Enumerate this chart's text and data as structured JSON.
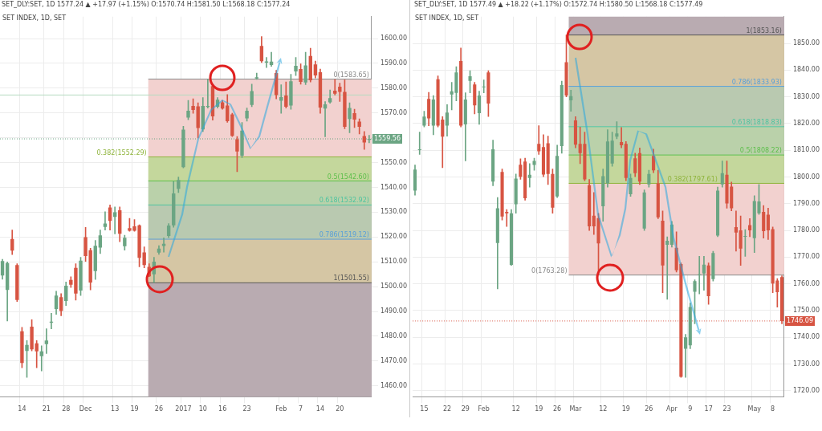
{
  "chart_data": [
    {
      "type": "candlestick",
      "title": "SET INDEX, 1D, SET",
      "subtitle": "SET_DLY:SET, 1D 1577.24 ▲ +17.97 (+1.15%) O:1570.74 H:1581.50 L:1568.18 C:1577.24",
      "categories": [
        null,
        null,
        null,
        null,
        "14",
        null,
        null,
        null,
        null,
        "21",
        null,
        null,
        null,
        "28",
        null,
        null,
        null,
        "Dec",
        null,
        null,
        null,
        null,
        null,
        "13",
        null,
        null,
        null,
        "19",
        null,
        null,
        null,
        null,
        "26",
        null,
        null,
        null,
        null,
        "2017",
        null,
        null,
        null,
        "10",
        null,
        null,
        null,
        "16",
        null,
        null,
        null,
        null,
        "23",
        null,
        null,
        null,
        null,
        null,
        null,
        "Feb",
        null,
        null,
        null,
        "7",
        null,
        null,
        null,
        "14",
        null,
        null,
        null,
        "20",
        null,
        null,
        null,
        null,
        null,
        null
      ],
      "ohlc": [
        [
          1504.5,
          1511,
          1503,
          1510.3
        ],
        [
          1498.7,
          1510,
          1486.2,
          1509.5
        ],
        [
          1519.2,
          1522.8,
          1512.9,
          1514.5
        ],
        [
          1508.7,
          1509.2,
          1494,
          1494.6
        ],
        [
          1482,
          1483.6,
          1467.3,
          1469.2
        ],
        [
          1474.1,
          1478.3,
          1463.4,
          1476.5
        ],
        [
          1483.9,
          1486.7,
          1474.1,
          1474.7
        ],
        [
          1477.2,
          1478.3,
          1467.3,
          1473.9
        ],
        [
          1472,
          1476.2,
          1466,
          1473.9
        ],
        [
          1476.8,
          1483,
          1473.1,
          1478.3
        ],
        [
          1485.5,
          1489.3,
          1483,
          1485.9
        ],
        [
          1491,
          1498.2,
          1488.8,
          1496.4
        ],
        [
          1495.8,
          1497.2,
          1488.3,
          1490.2
        ],
        [
          1494.2,
          1501.9,
          1492.4,
          1500.4
        ],
        [
          1502.7,
          1504,
          1499.7,
          1500.8
        ],
        [
          1507.6,
          1509.2,
          1494.6,
          1497.2
        ],
        [
          1498.4,
          1511.8,
          1496.4,
          1510.5
        ],
        [
          1519.9,
          1523.9,
          1510.2,
          1512.3
        ],
        [
          1514.7,
          1515.5,
          1498.7,
          1501.7
        ],
        [
          1506.3,
          1518.6,
          1502.9,
          1516.5
        ],
        [
          1515.7,
          1522.8,
          1513.3,
          1520.7
        ],
        [
          1524.1,
          1530.2,
          1522.8,
          1525.4
        ],
        [
          1531.9,
          1532.9,
          1522.8,
          1526.5
        ],
        [
          1528.1,
          1532.1,
          1521.3,
          1530
        ],
        [
          1530.8,
          1532.1,
          1518.1,
          1521.3
        ],
        [
          1516.3,
          1520.7,
          1514.7,
          1519.7
        ],
        [
          1523.6,
          1527.5,
          1522.3,
          1522.5
        ],
        [
          1524.3,
          1527,
          1522.3,
          1522.5
        ],
        [
          1524.7,
          1524.9,
          1508,
          1511.6
        ],
        [
          1513.8,
          1516,
          1507.6,
          1508.7
        ],
        [
          1508,
          1509.2,
          1504,
          1504.2
        ],
        [
          1505,
          1511.8,
          1501.6,
          1510.1
        ],
        [
          1513.7,
          1516.5,
          1513,
          1515.3
        ],
        [
          1516.4,
          1519.7,
          1513.9,
          1517.3
        ],
        [
          1520.4,
          1525.4,
          1519.7,
          1524.6
        ],
        [
          1524.7,
          1542.4,
          1523.9,
          1537.6
        ],
        [
          1539.4,
          1544.2,
          1537.9,
          1543
        ],
        [
          1548.2,
          1564.6,
          1547.9,
          1563.3
        ],
        [
          1568.1,
          1575.1,
          1567.3,
          1570.9
        ],
        [
          1572.8,
          1575.7,
          1569.9,
          1571.2
        ],
        [
          1572.7,
          1574.1,
          1559.9,
          1563.9
        ],
        [
          1563.4,
          1576.2,
          1562.5,
          1572.8
        ],
        [
          1572.4,
          1583.6,
          1572,
          1572.8
        ],
        [
          1580.8,
          1581.4,
          1567.1,
          1568.6
        ],
        [
          1572.5,
          1576.2,
          1572,
          1575.3
        ],
        [
          1574.3,
          1575.1,
          1571.5,
          1571.8
        ],
        [
          1573,
          1577.4,
          1566.2,
          1566.7
        ],
        [
          1569.4,
          1569.9,
          1560.5,
          1560.8
        ],
        [
          1559.4,
          1560.5,
          1546.3,
          1554.5
        ],
        [
          1552.8,
          1566.2,
          1552,
          1562.9
        ],
        [
          1567.8,
          1572,
          1566.7,
          1570.9
        ],
        [
          1573.2,
          1581.6,
          1572.5,
          1578.8
        ],
        [
          1583.9,
          1586.1,
          1583.5,
          1584.4
        ],
        [
          1597,
          1600.8,
          1590.3,
          1590.9
        ],
        [
          1590.3,
          1592.4,
          1588.3,
          1590.8
        ],
        [
          1589.3,
          1594.5,
          1588.8,
          1590.7
        ],
        [
          1586.1,
          1587.2,
          1575.7,
          1577.2
        ],
        [
          1574.9,
          1581.4,
          1569.9,
          1576.4
        ],
        [
          1577,
          1582.5,
          1572,
          1572.5
        ],
        [
          1573,
          1585.6,
          1571.5,
          1582.8
        ],
        [
          1586.7,
          1592.4,
          1585.1,
          1589
        ],
        [
          1587.7,
          1589.8,
          1581.6,
          1582.5
        ],
        [
          1582.3,
          1594.5,
          1581.4,
          1589.2
        ],
        [
          1593,
          1596.1,
          1582.5,
          1583.2
        ],
        [
          1589.6,
          1590.9,
          1584.1,
          1585.1
        ],
        [
          1586.4,
          1587.7,
          1569.9,
          1572.2
        ],
        [
          1571.8,
          1574.6,
          1560.4,
          1573.5
        ],
        [
          1574.3,
          1579.3,
          1573.9,
          1576
        ],
        [
          1579,
          1583.5,
          1577.2,
          1577.8
        ],
        [
          1580.6,
          1582,
          1574.6,
          1578.5
        ],
        [
          1578.5,
          1583.3,
          1563.6,
          1564.4
        ],
        [
          1567.6,
          1574.1,
          1562,
          1572
        ],
        [
          1569.9,
          1571.5,
          1564.1,
          1567.3
        ],
        [
          1566.5,
          1567.6,
          1561.5,
          1564.4
        ],
        [
          1560.7,
          1562.5,
          1555.3,
          1558.1
        ],
        [
          1559.2,
          1561,
          1558,
          1559.56
        ]
      ],
      "colors": [
        "#6ba583",
        "#6ba583",
        "#d75442",
        "#d75442",
        "#d75442",
        "#6ba583",
        "#d75442",
        "#d75442",
        "#6ba583",
        "#6ba583",
        "#6ba583",
        "#6ba583",
        "#d75442",
        "#6ba583",
        "#d75442",
        "#d75442",
        "#6ba583",
        "#d75442",
        "#d75442",
        "#6ba583",
        "#6ba583",
        "#6ba583",
        "#d75442",
        "#6ba583",
        "#d75442",
        "#6ba583",
        "#d75442",
        "#d75442",
        "#d75442",
        "#d75442",
        "#d75442",
        "#6ba583",
        "#6ba583",
        "#6ba583",
        "#6ba583",
        "#6ba583",
        "#6ba583",
        "#6ba583",
        "#6ba583",
        "#d75442",
        "#d75442",
        "#6ba583",
        "#6ba583",
        "#d75442",
        "#6ba583",
        "#d75442",
        "#d75442",
        "#d75442",
        "#d75442",
        "#6ba583",
        "#6ba583",
        "#6ba583",
        "#6ba583",
        "#d75442",
        "#6ba583",
        "#6ba583",
        "#d75442",
        "#6ba583",
        "#d75442",
        "#6ba583",
        "#6ba583",
        "#d75442",
        "#6ba583",
        "#d75442",
        "#d75442",
        "#d75442",
        "#6ba583",
        "#6ba583",
        "#d75442",
        "#d75442",
        "#d75442",
        "#6ba583",
        "#d75442",
        "#d75442",
        "#d75442",
        "#6ba583"
      ],
      "ylim": [
        1455.6,
        1608.8
      ],
      "yticks": [
        {
          "value": 1460,
          "label": "1460.00"
        },
        {
          "value": 1470,
          "label": "1470.00"
        },
        {
          "value": 1480,
          "label": "1480.00"
        },
        {
          "value": 1490,
          "label": "1490.00"
        },
        {
          "value": 1500,
          "label": "1500.00"
        },
        {
          "value": 1510,
          "label": "1510.00"
        },
        {
          "value": 1520,
          "label": "1520.00"
        },
        {
          "value": 1530,
          "label": "1530.00"
        },
        {
          "value": 1540,
          "label": "1540.00"
        },
        {
          "value": 1550,
          "label": "1550.00"
        },
        {
          "value": 1560,
          "label": null
        },
        {
          "value": 1570,
          "label": "1570.00"
        },
        {
          "value": 1580,
          "label": "1580.00"
        },
        {
          "value": 1590,
          "label": "1590.00"
        },
        {
          "value": 1600,
          "label": "1600.00"
        }
      ],
      "grid": true,
      "bands": [
        {
          "axis": "y",
          "from": 1455.6,
          "to": 1501.55,
          "color": "#b9abb1"
        },
        {
          "axis": "y",
          "from": 1501.55,
          "to": 1519.12,
          "color": "#d5c6a4"
        },
        {
          "axis": "y",
          "from": 1519.12,
          "to": 1532.92,
          "color": "#b9c9b0"
        },
        {
          "axis": "y",
          "from": 1532.92,
          "to": 1542.6,
          "color": "#bad1aa"
        },
        {
          "axis": "y",
          "from": 1542.6,
          "to": 1552.29,
          "color": "#c4d79c"
        },
        {
          "axis": "y",
          "from": 1552.29,
          "to": 1583.65,
          "color": "#f2d1cf"
        }
      ],
      "ref_lines": [
        {
          "axis": "y",
          "value": 1583.65,
          "label": "0(1583.65)",
          "color": "#8a8a8a"
        },
        {
          "axis": "y",
          "value": 1552.29,
          "label": "0.382(1552.29)",
          "color": "#8fb43c"
        },
        {
          "axis": "y",
          "value": 1542.6,
          "label": "0.5(1542.60)",
          "color": "#5cbf4a"
        },
        {
          "axis": "y",
          "value": 1532.92,
          "label": "0.618(1532.92)",
          "color": "#4fc4a0"
        },
        {
          "axis": "y",
          "value": 1519.12,
          "label": "0.786(1519.12)",
          "color": "#5aa0d8"
        },
        {
          "axis": "y",
          "value": 1501.55,
          "label": "1(1501.55)",
          "color": "#555555"
        },
        {
          "axis": "y",
          "value": 1577.24,
          "color": "#b5dcc0"
        },
        {
          "axis": "y",
          "value": 1559.56,
          "label": "1559.56",
          "color": "#6ba583",
          "line_style": "dotted"
        }
      ]
    },
    {
      "type": "candlestick",
      "title": "SET INDEX, 1D, SET",
      "subtitle": "SET_DLY:SET, 1D 1577.49 ▲ +18.22 (+1.17%) O:1572.74 H:1580.50 L:1568.18 C:1577.49",
      "categories": [
        null,
        null,
        "15",
        null,
        null,
        null,
        null,
        "22",
        null,
        null,
        null,
        "29",
        null,
        null,
        null,
        "Feb",
        null,
        null,
        null,
        null,
        null,
        null,
        "12",
        null,
        null,
        null,
        null,
        "19",
        null,
        null,
        null,
        "26",
        null,
        null,
        null,
        "Mar",
        null,
        null,
        null,
        null,
        null,
        "12",
        null,
        null,
        null,
        null,
        "19",
        null,
        null,
        null,
        null,
        "26",
        null,
        null,
        null,
        null,
        "Apr",
        null,
        null,
        null,
        "9",
        null,
        null,
        null,
        "17",
        null,
        null,
        null,
        "23",
        null,
        null,
        null,
        null,
        null,
        "May",
        null,
        null,
        null,
        "8",
        null,
        null
      ],
      "ohlc": [
        [
          1794.9,
          1804.5,
          1793.2,
          1802.8
        ],
        [
          1810.1,
          1816.8,
          1808.4,
          1810.3
        ],
        [
          1819.2,
          1824.6,
          1818.7,
          1822.6
        ],
        [
          1829.2,
          1831.7,
          1819.2,
          1821.9
        ],
        [
          1819.2,
          1830.5,
          1815.8,
          1829
        ],
        [
          1836.6,
          1837.8,
          1818.7,
          1819.2
        ],
        [
          1821.5,
          1822.6,
          1803.5,
          1815.1
        ],
        [
          1819.2,
          1827.1,
          1815.3,
          1824.1
        ],
        [
          1830.9,
          1835.4,
          1825.1,
          1832.1
        ],
        [
          1831.5,
          1841.3,
          1828.5,
          1839.1
        ],
        [
          1843.4,
          1848.3,
          1818.7,
          1819.2
        ],
        [
          1819.7,
          1831.5,
          1806,
          1829
        ],
        [
          1836,
          1839.8,
          1831.5,
          1837.7
        ],
        [
          1834.6,
          1835.4,
          1823.6,
          1826.8
        ],
        [
          1823.9,
          1832.1,
          1819.7,
          1830.5
        ],
        [
          1833.6,
          1836.3,
          1831.5,
          1833.8
        ],
        [
          1839.1,
          1839.8,
          1822.6,
          1827.5
        ],
        [
          1798.3,
          1813.8,
          1796.7,
          1810.4
        ],
        [
          1775.3,
          1792.3,
          1758.1,
          1788.3
        ],
        [
          1801.9,
          1803,
          1783.9,
          1785.2
        ],
        [
          1786.9,
          1787.8,
          1781.5,
          1786.4
        ],
        [
          1767.1,
          1787.8,
          1766.9,
          1786.4
        ],
        [
          1789.8,
          1801.1,
          1786.4,
          1799.4
        ],
        [
          1804.6,
          1806.8,
          1799.1,
          1800.1
        ],
        [
          1805.8,
          1807,
          1791.3,
          1792
        ],
        [
          1799.6,
          1805,
          1796.2,
          1800.8
        ],
        [
          1804.5,
          1807,
          1802.5,
          1806
        ],
        [
          1812.4,
          1819.2,
          1808.4,
          1809.6
        ],
        [
          1811.2,
          1815.8,
          1800.1,
          1800.9
        ],
        [
          1812.6,
          1815.3,
          1797.2,
          1801.1
        ],
        [
          1801.1,
          1803,
          1786.4,
          1788.5
        ],
        [
          1792.7,
          1811.9,
          1792.3,
          1807.9
        ],
        [
          1811.6,
          1835.9,
          1808.9,
          1834.4
        ],
        [
          1843,
          1853.16,
          1830,
          1830.5
        ],
        [
          1828.7,
          1832.5,
          1824.6,
          1830.3
        ],
        [
          1821.2,
          1822.6,
          1810.9,
          1812.1
        ],
        [
          1812.4,
          1818.7,
          1805,
          1808.9
        ],
        [
          1812.4,
          1816.8,
          1798.6,
          1799.1
        ],
        [
          1796.9,
          1799.1,
          1780,
          1781.5
        ],
        [
          1785.5,
          1794.2,
          1778.5,
          1781.5
        ],
        [
          1784.6,
          1786.4,
          1763.28,
          1775.1
        ],
        [
          1789,
          1803,
          1783.4,
          1800.3
        ],
        [
          1797.6,
          1817.7,
          1796.2,
          1813.3
        ],
        [
          1805,
          1816.8,
          1804,
          1813.6
        ],
        [
          1815.1,
          1820.7,
          1814.3,
          1816.3
        ],
        [
          1813.1,
          1818.5,
          1810.9,
          1811.9
        ],
        [
          1812.4,
          1813.3,
          1798.6,
          1799.6
        ],
        [
          1793.5,
          1801.1,
          1792.7,
          1799.6
        ],
        [
          1807,
          1808.9,
          1800.1,
          1801.4
        ],
        [
          1808.9,
          1810.9,
          1797.2,
          1798.3
        ],
        [
          1780.7,
          1795.2,
          1780,
          1794.2
        ],
        [
          1797.2,
          1802.5,
          1796.2,
          1801.1
        ],
        [
          1807.9,
          1810.4,
          1801.6,
          1802.5
        ],
        [
          1797.6,
          1802.5,
          1784.4,
          1784.9
        ],
        [
          1783.6,
          1787.3,
          1756.7,
          1766.9
        ],
        [
          1774.6,
          1777.6,
          1754.2,
          1776.1
        ],
        [
          1774.6,
          1783.4,
          1773.7,
          1782.2
        ],
        [
          1773.5,
          1779.5,
          1764.4,
          1765.1
        ],
        [
          1767.4,
          1767.8,
          1725,
          1725.2
        ],
        [
          1735.7,
          1741.1,
          1725,
          1740
        ],
        [
          1737,
          1752.8,
          1735.7,
          1751.3
        ],
        [
          1757,
          1761.5,
          1745,
          1761
        ],
        [
          1763.3,
          1770.3,
          1756.2,
          1763.6
        ],
        [
          1763.9,
          1770.3,
          1757.6,
          1767.2
        ],
        [
          1766.9,
          1767.8,
          1752.3,
          1755.4
        ],
        [
          1761.8,
          1772.2,
          1761,
          1771.5
        ],
        [
          1778.1,
          1796.2,
          1777.6,
          1794.9
        ],
        [
          1797.2,
          1806,
          1796.2,
          1801.4
        ],
        [
          1800.8,
          1806,
          1788.3,
          1790.1
        ],
        [
          1796.4,
          1798.1,
          1787.3,
          1788.3
        ],
        [
          1781.2,
          1787.3,
          1772.2,
          1779.2
        ],
        [
          1780,
          1785.4,
          1766.9,
          1773.2
        ],
        [
          1777.6,
          1780.3,
          1770.3,
          1777.9
        ],
        [
          1782,
          1784.4,
          1777.6,
          1780
        ],
        [
          1777.1,
          1793,
          1771.7,
          1791
        ],
        [
          1786.4,
          1797.2,
          1786,
          1790.8
        ],
        [
          1786.9,
          1789.3,
          1777.1,
          1779.7
        ],
        [
          1785.9,
          1788.3,
          1776.6,
          1780
        ],
        [
          1780.5,
          1781.3,
          1756.7,
          1760.1
        ],
        [
          1761.2,
          1762,
          1751.3,
          1756.9
        ],
        [
          1762.5,
          1763,
          1745,
          1746.09
        ]
      ],
      "colors": [
        "#6ba583",
        "#6ba583",
        "#6ba583",
        "#d75442",
        "#6ba583",
        "#d75442",
        "#d75442",
        "#6ba583",
        "#6ba583",
        "#6ba583",
        "#d75442",
        "#6ba583",
        "#6ba583",
        "#d75442",
        "#6ba583",
        "#6ba583",
        "#d75442",
        "#6ba583",
        "#6ba583",
        "#d75442",
        "#d75442",
        "#6ba583",
        "#6ba583",
        "#d75442",
        "#d75442",
        "#6ba583",
        "#6ba583",
        "#d75442",
        "#d75442",
        "#d75442",
        "#d75442",
        "#6ba583",
        "#6ba583",
        "#d75442",
        "#6ba583",
        "#d75442",
        "#d75442",
        "#d75442",
        "#d75442",
        "#d75442",
        "#d75442",
        "#6ba583",
        "#6ba583",
        "#6ba583",
        "#6ba583",
        "#d75442",
        "#d75442",
        "#6ba583",
        "#d75442",
        "#d75442",
        "#6ba583",
        "#6ba583",
        "#d75442",
        "#d75442",
        "#d75442",
        "#6ba583",
        "#6ba583",
        "#d75442",
        "#d75442",
        "#6ba583",
        "#6ba583",
        "#6ba583",
        "#6ba583",
        "#6ba583",
        "#d75442",
        "#6ba583",
        "#6ba583",
        "#6ba583",
        "#d75442",
        "#d75442",
        "#d75442",
        "#d75442",
        "#6ba583",
        "#d75442",
        "#6ba583",
        "#6ba583",
        "#d75442",
        "#d75442",
        "#d75442",
        "#d75442",
        "#d75442"
      ],
      "ylim": [
        1717.7,
        1860
      ],
      "yticks": [
        {
          "value": 1720,
          "label": "1720.00"
        },
        {
          "value": 1730,
          "label": "1730.00"
        },
        {
          "value": 1740,
          "label": "1740.00"
        },
        {
          "value": 1750,
          "label": "1750.00"
        },
        {
          "value": 1760,
          "label": "1760.00"
        },
        {
          "value": 1770,
          "label": "1770.00"
        },
        {
          "value": 1780,
          "label": "1780.00"
        },
        {
          "value": 1790,
          "label": "1790.00"
        },
        {
          "value": 1800,
          "label": "1800.00"
        },
        {
          "value": 1810,
          "label": "1810.00"
        },
        {
          "value": 1820,
          "label": "1820.00"
        },
        {
          "value": 1830,
          "label": "1830.00"
        },
        {
          "value": 1840,
          "label": "1840.00"
        },
        {
          "value": 1850,
          "label": "1850.00"
        }
      ],
      "grid": true,
      "bands": [
        {
          "axis": "y",
          "from": 1853.16,
          "to": 1860,
          "color": "#b9abb1"
        },
        {
          "axis": "y",
          "from": 1833.93,
          "to": 1853.16,
          "color": "#d5c6a4"
        },
        {
          "axis": "y",
          "from": 1818.83,
          "to": 1833.93,
          "color": "#b9c9b0"
        },
        {
          "axis": "y",
          "from": 1808.22,
          "to": 1818.83,
          "color": "#bad1aa"
        },
        {
          "axis": "y",
          "from": 1797.61,
          "to": 1808.22,
          "color": "#c4d79c"
        },
        {
          "axis": "y",
          "from": 1763.28,
          "to": 1797.61,
          "color": "#f2d1cf"
        }
      ],
      "ref_lines": [
        {
          "axis": "y",
          "value": 1853.16,
          "label": "1(1853.16)",
          "color": "#555555"
        },
        {
          "axis": "y",
          "value": 1833.93,
          "label": "0.786(1833.93)",
          "color": "#5aa0d8"
        },
        {
          "axis": "y",
          "value": 1818.83,
          "label": "0.618(1818.83)",
          "color": "#4fc4a0"
        },
        {
          "axis": "y",
          "value": 1808.22,
          "label": "0.5(1808.22)",
          "color": "#5cbf4a"
        },
        {
          "axis": "y",
          "value": 1797.61,
          "label": "0.382(1797.61)",
          "color": "#8fb43c"
        },
        {
          "axis": "y",
          "value": 1763.28,
          "label": "0(1763.28)",
          "color": "#8a8a8a"
        },
        {
          "axis": "y",
          "value": 1746.09,
          "label": "1746.09",
          "color": "#d75442",
          "line_style": "dotted"
        }
      ]
    }
  ]
}
